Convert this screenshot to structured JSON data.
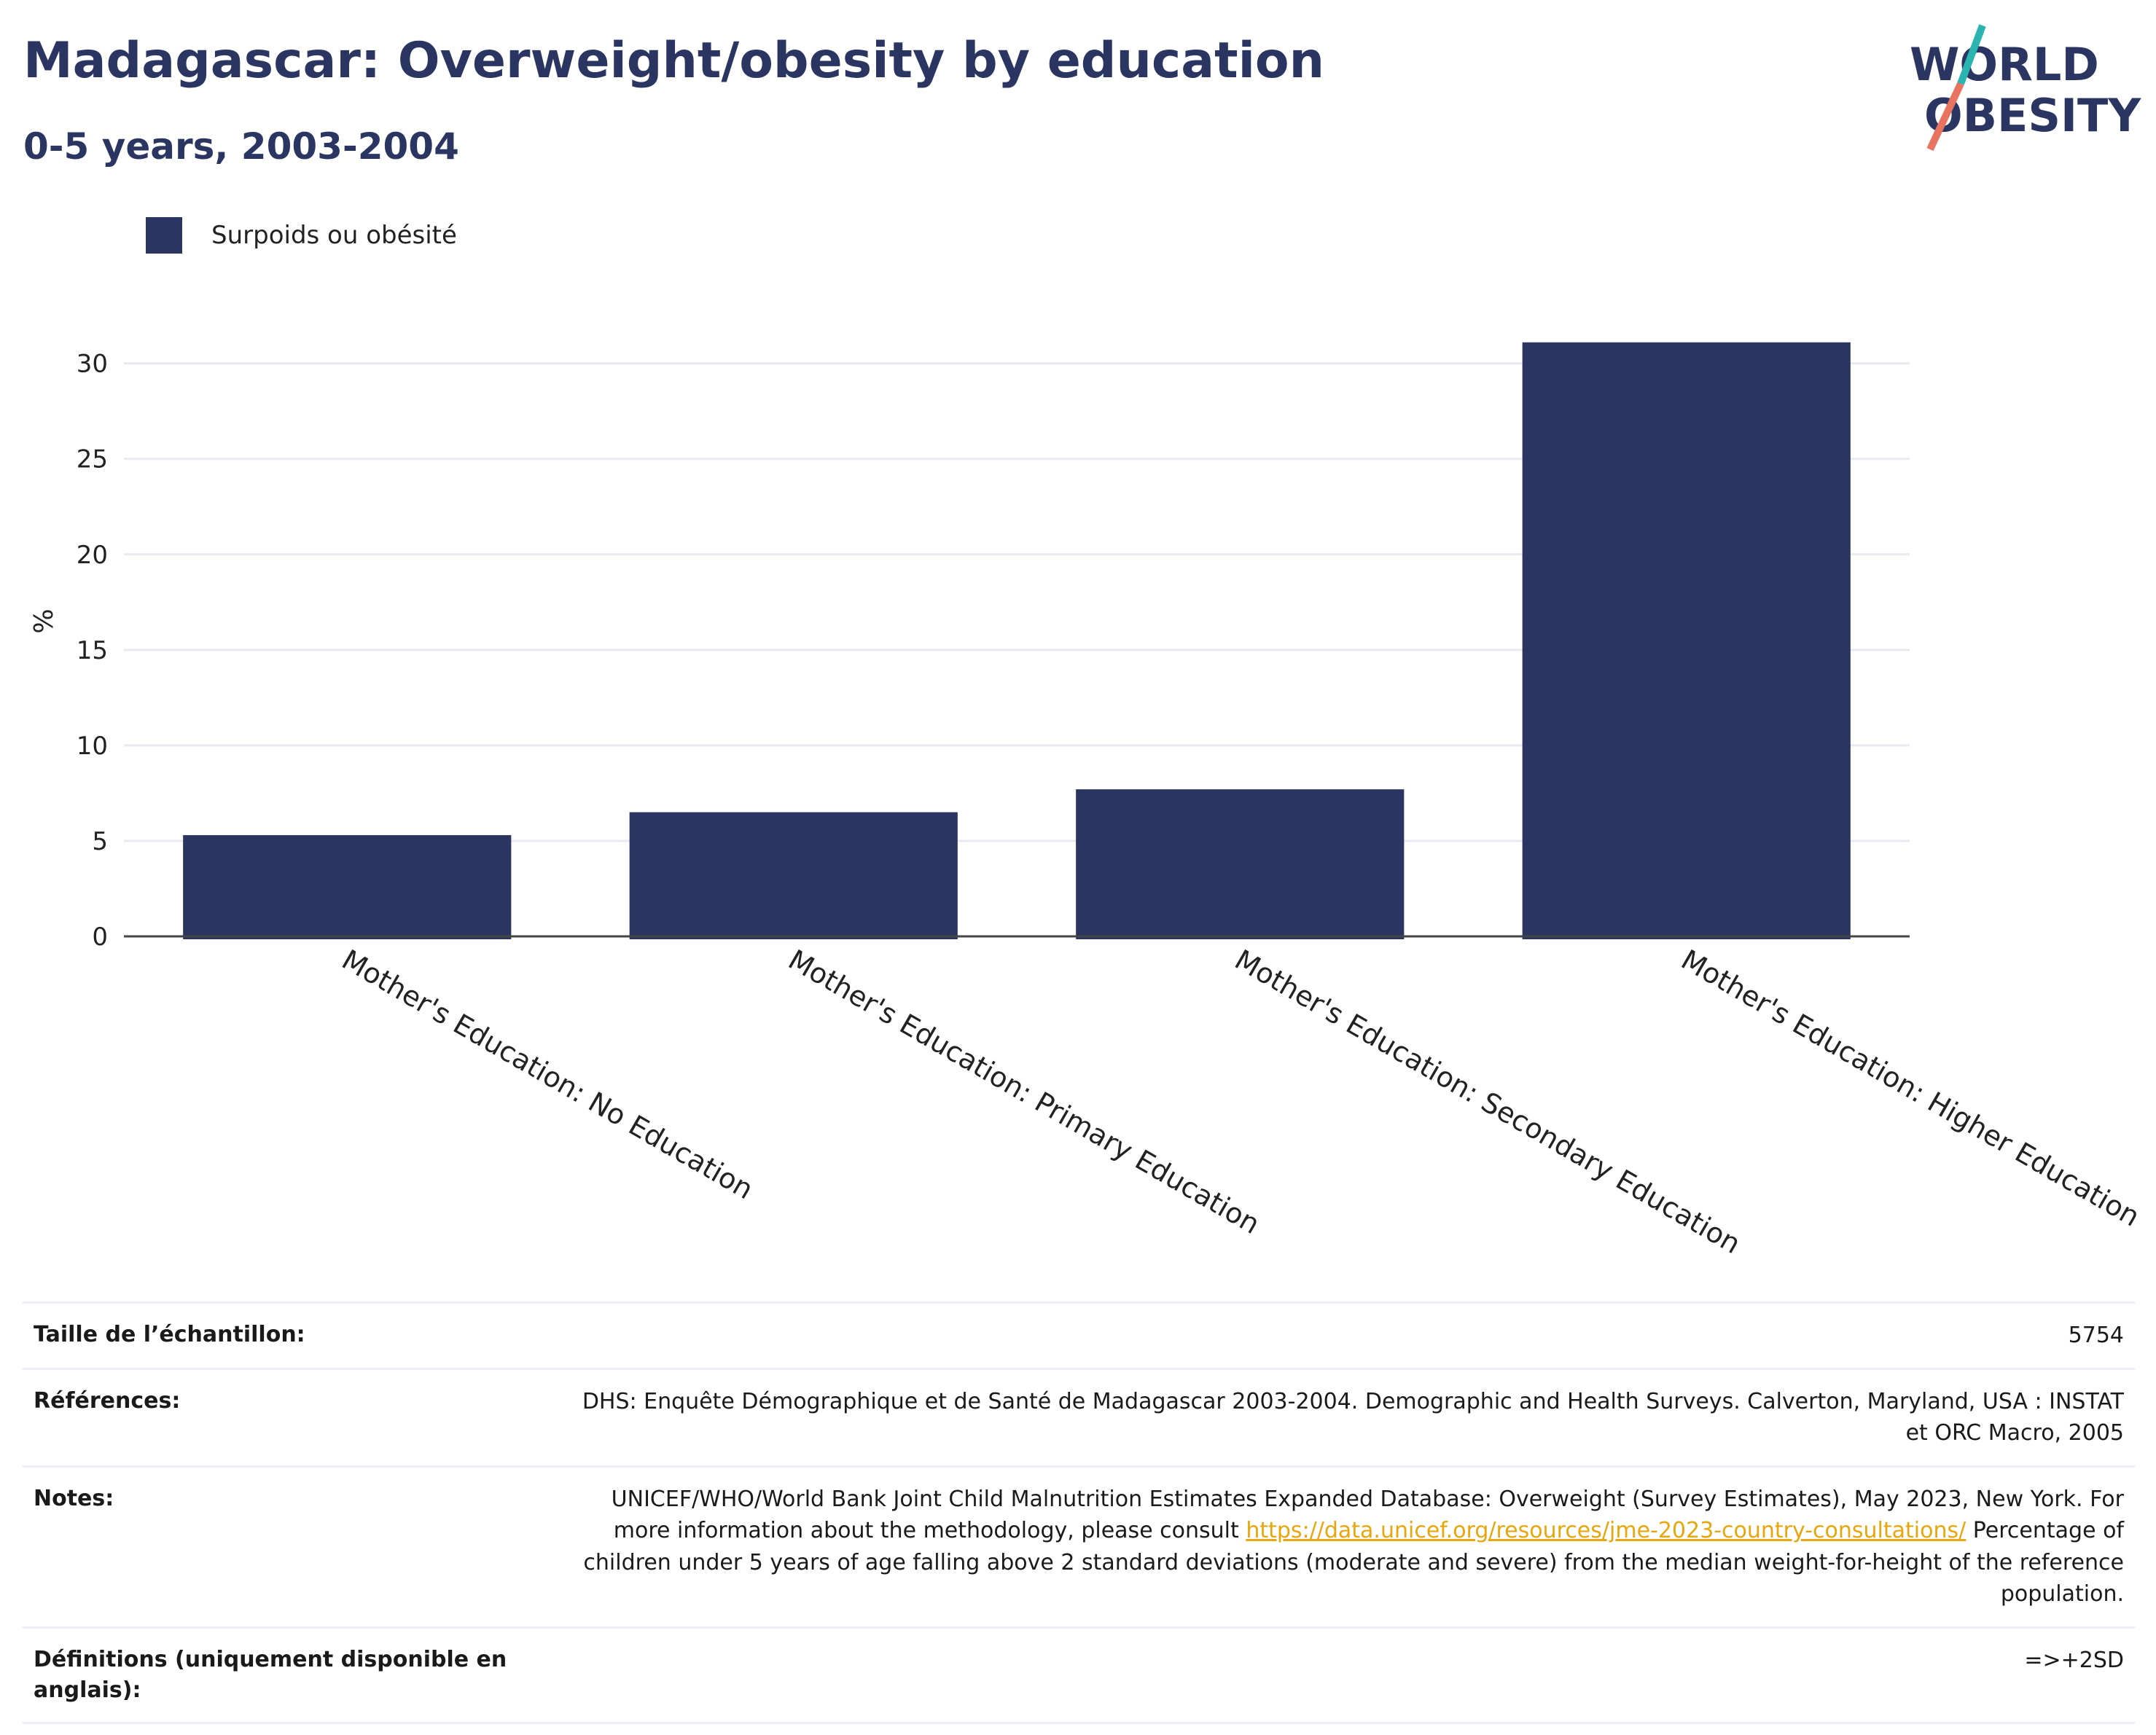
{
  "header": {
    "title": "Madagascar: Overweight/obesity by education",
    "subtitle": "0-5 years, 2003-2004"
  },
  "logo": {
    "line1": "WORLD",
    "line2": "OBESITY",
    "accent_teal": "#2bb5b0",
    "accent_coral": "#e8735f"
  },
  "legend": {
    "items": [
      {
        "label": "Surpoids ou obésité",
        "color": "#2b3561"
      }
    ]
  },
  "chart_data": {
    "type": "bar",
    "categories": [
      "Mother's Education: No Education",
      "Mother's Education: Primary Education",
      "Mother's Education: Secondary Education",
      "Mother's Education: Higher Education"
    ],
    "series": [
      {
        "name": "Surpoids ou obésité",
        "values": [
          5.3,
          6.5,
          7.7,
          31.1
        ],
        "color": "#2b3561"
      }
    ],
    "xlabel": "",
    "ylabel": "%",
    "ylim": [
      0,
      33
    ],
    "yticks": [
      0,
      5,
      10,
      15,
      20,
      25,
      30
    ],
    "grid": true,
    "legend_position": "top-left"
  },
  "info": {
    "rows": [
      {
        "label": "Taille de l’échantillon:",
        "value": "5754"
      },
      {
        "label": "Références:",
        "value": "DHS: Enquête Démographique et de Santé de Madagascar 2003-2004. Demographic and Health Surveys. Calverton, Maryland, USA : INSTAT et ORC Macro, 2005"
      },
      {
        "label": "Notes:",
        "value_before": "UNICEF/WHO/World Bank Joint Child Malnutrition Estimates Expanded Database: Overweight (Survey Estimates), May 2023, New York. For more information about the methodology, please consult ",
        "link": "https://data.unicef.org/resources/jme-2023-country-consultations/",
        "value_after": " Percentage of children under 5 years of age falling above 2 standard deviations (moderate and severe) from the median weight-for-height of the reference population."
      },
      {
        "label": "Définitions (uniquement disponible en anglais):",
        "value": "=>+2SD"
      }
    ]
  }
}
